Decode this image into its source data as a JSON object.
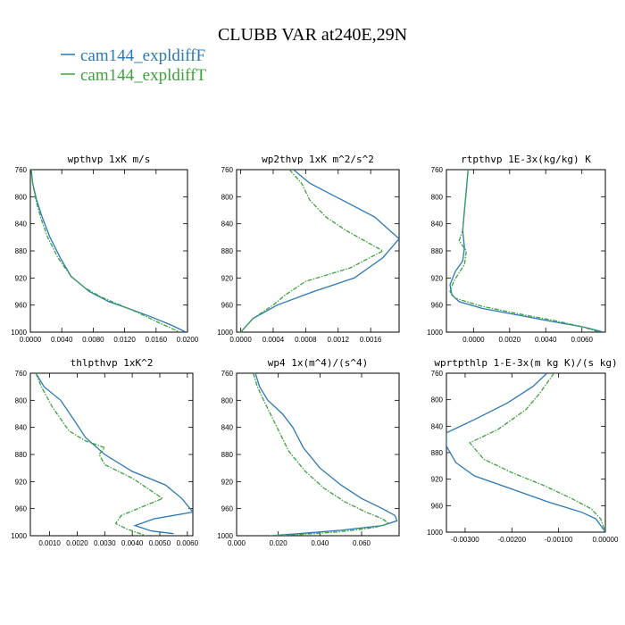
{
  "figure": {
    "title": "CLUBB VAR at240E,29N",
    "legend": [
      {
        "label": "cam144_expldiffF",
        "color": "#2a78b8",
        "dash": false
      },
      {
        "label": "cam144_expldiffT",
        "color": "#3aa33a",
        "dash": true
      }
    ]
  },
  "chart_data": [
    {
      "type": "line",
      "title": "wpthvp  1xK m/s",
      "xlim": [
        0,
        0.02
      ],
      "ylim": [
        760,
        1000
      ],
      "y_reversed": true,
      "xticks": [
        "0.0000",
        "0.0040",
        "0.0080",
        "0.0120",
        "0.0160",
        "0.0200"
      ],
      "xtick_values": [
        0,
        0.004,
        0.008,
        0.012,
        0.016,
        0.02
      ],
      "yticks": [
        760,
        800,
        840,
        880,
        920,
        960,
        1000
      ],
      "series": [
        {
          "name": "cam144_expldiffF",
          "x": [
            0.0001,
            0.0003,
            0.0008,
            0.0015,
            0.0025,
            0.0038,
            0.0052,
            0.0075,
            0.01,
            0.0125,
            0.0155,
            0.018,
            0.0198
          ],
          "y": [
            760,
            780,
            805,
            830,
            860,
            890,
            918,
            940,
            955,
            965,
            978,
            990,
            1000
          ]
        },
        {
          "name": "cam144_expldiffT",
          "x": [
            0.0001,
            0.0003,
            0.0007,
            0.0013,
            0.0022,
            0.0035,
            0.0052,
            0.007,
            0.009,
            0.011,
            0.0135,
            0.016,
            0.019
          ],
          "y": [
            760,
            780,
            805,
            830,
            860,
            890,
            918,
            935,
            948,
            958,
            970,
            984,
            1000
          ]
        }
      ]
    },
    {
      "type": "line",
      "title": "wp2thvp  1xK m^2/s^2",
      "xlim": [
        -5e-05,
        0.00195
      ],
      "ylim": [
        760,
        1000
      ],
      "y_reversed": true,
      "xticks": [
        "0.0000",
        "0.0004",
        "0.0008",
        "0.0012",
        "0.0016"
      ],
      "xtick_values": [
        0,
        0.0004,
        0.0008,
        0.0012,
        0.0016
      ],
      "yticks": [
        760,
        800,
        840,
        880,
        920,
        960,
        1000
      ],
      "series": [
        {
          "name": "cam144_expldiffF",
          "x": [
            0.00065,
            0.00085,
            0.00125,
            0.00165,
            0.00195,
            0.00175,
            0.0014,
            0.0009,
            0.00045,
            0.00015,
            0.0
          ],
          "y": [
            760,
            780,
            805,
            830,
            862,
            890,
            920,
            940,
            960,
            980,
            1000
          ]
        },
        {
          "name": "cam144_expldiffT",
          "x": [
            0.0006,
            0.00075,
            0.00085,
            0.00105,
            0.0013,
            0.00175,
            0.00135,
            0.0008,
            0.00055,
            0.0004,
            0.00015,
            0.0
          ],
          "y": [
            760,
            780,
            805,
            830,
            850,
            880,
            905,
            925,
            945,
            960,
            980,
            1000
          ]
        }
      ]
    },
    {
      "type": "line",
      "title": "rtpthvp  1E-3x(kg/kg) K",
      "xlim": [
        -0.0015,
        0.0073
      ],
      "ylim": [
        760,
        1000
      ],
      "y_reversed": true,
      "xticks": [
        "0.0000",
        "0.0020",
        "0.0040",
        "0.0060"
      ],
      "xtick_values": [
        0,
        0.002,
        0.004,
        0.006
      ],
      "yticks": [
        760,
        800,
        840,
        880,
        920,
        960,
        1000
      ],
      "series": [
        {
          "name": "cam144_expldiffF",
          "x": [
            -0.0003,
            -0.0004,
            -0.0005,
            -0.0006,
            -0.0005,
            -0.0006,
            -0.001,
            -0.0013,
            -0.0012,
            -0.0008,
            0.0005,
            0.0025,
            0.0045,
            0.0062,
            0.0072
          ],
          "y": [
            760,
            790,
            820,
            850,
            875,
            895,
            910,
            930,
            945,
            955,
            965,
            975,
            985,
            993,
            1000
          ]
        },
        {
          "name": "cam144_expldiffT",
          "x": [
            -0.0003,
            -0.0004,
            -0.0005,
            -0.0006,
            -0.0008,
            -0.0004,
            -0.0005,
            -0.0011,
            -0.0013,
            -0.001,
            0.0005,
            0.0025,
            0.0045,
            0.006,
            0.007
          ],
          "y": [
            760,
            790,
            820,
            850,
            865,
            880,
            900,
            925,
            940,
            950,
            962,
            973,
            983,
            992,
            1000
          ]
        }
      ]
    },
    {
      "type": "line",
      "title": "thlpthvp  1xK^2",
      "xlim": [
        0.0003,
        0.0062
      ],
      "ylim": [
        760,
        1000
      ],
      "y_reversed": true,
      "xticks": [
        "0.0010",
        "0.0020",
        "0.0030",
        "0.0040",
        "0.0050",
        "0.0060"
      ],
      "xtick_values": [
        0.001,
        0.002,
        0.003,
        0.004,
        0.005,
        0.006
      ],
      "yticks": [
        760,
        800,
        840,
        880,
        920,
        960,
        1000
      ],
      "series": [
        {
          "name": "cam144_expldiffF",
          "x": [
            0.0005,
            0.0008,
            0.0014,
            0.0019,
            0.0023,
            0.003,
            0.004,
            0.0052,
            0.0058,
            0.0062,
            0.0055,
            0.0048,
            0.0041,
            0.0047,
            0.0055
          ],
          "y": [
            760,
            780,
            800,
            830,
            855,
            880,
            905,
            925,
            945,
            965,
            970,
            975,
            985,
            993,
            997
          ]
        },
        {
          "name": "cam144_expldiffT",
          "x": [
            0.0005,
            0.0007,
            0.0011,
            0.0017,
            0.0023,
            0.003,
            0.0028,
            0.003,
            0.004,
            0.0051,
            0.0042,
            0.0036,
            0.0034,
            0.0038,
            0.0045
          ],
          "y": [
            760,
            780,
            810,
            845,
            860,
            870,
            880,
            895,
            915,
            945,
            960,
            970,
            982,
            990,
            1000
          ]
        }
      ]
    },
    {
      "type": "line",
      "title": "wp4  1x(m^4)/(s^4)",
      "xlim": [
        0,
        0.078
      ],
      "ylim": [
        760,
        1000
      ],
      "y_reversed": true,
      "xticks": [
        "0.000",
        "0.020",
        "0.040",
        "0.060"
      ],
      "xtick_values": [
        0,
        0.02,
        0.04,
        0.06
      ],
      "yticks": [
        760,
        800,
        840,
        880,
        920,
        960,
        1000
      ],
      "series": [
        {
          "name": "cam144_expldiffF",
          "x": [
            0.009,
            0.011,
            0.015,
            0.022,
            0.027,
            0.032,
            0.04,
            0.05,
            0.06,
            0.07,
            0.076,
            0.077,
            0.07,
            0.05,
            0.03,
            0.016
          ],
          "y": [
            760,
            780,
            800,
            820,
            840,
            870,
            900,
            925,
            945,
            960,
            970,
            978,
            985,
            992,
            997,
            1000
          ]
        },
        {
          "name": "cam144_expldiffT",
          "x": [
            0.008,
            0.01,
            0.013,
            0.017,
            0.021,
            0.025,
            0.033,
            0.042,
            0.052,
            0.062,
            0.07,
            0.073,
            0.066,
            0.05,
            0.032,
            0.017
          ],
          "y": [
            760,
            780,
            800,
            825,
            850,
            875,
            905,
            930,
            950,
            965,
            975,
            982,
            988,
            994,
            998,
            1000
          ]
        }
      ]
    },
    {
      "type": "line",
      "title": "wprtpthlp  1-E-3x(m kg K)/(s kg)",
      "xlim": [
        -0.0034,
        0.0
      ],
      "ylim": [
        760,
        1000
      ],
      "y_reversed": true,
      "xticks": [
        "-0.00300",
        "-0.00200",
        "-0.00100",
        "0.00000"
      ],
      "xtick_values": [
        -0.003,
        -0.002,
        -0.001,
        0
      ],
      "yticks": [
        760,
        800,
        840,
        880,
        920,
        960,
        1000
      ],
      "series": [
        {
          "name": "cam144_expldiffF",
          "x": [
            -0.00125,
            -0.00155,
            -0.0021,
            -0.0028,
            -0.0034,
            -0.0034,
            -0.0032,
            -0.0028,
            -0.002,
            -0.0012,
            -0.0005,
            -0.0002,
            -0.0001,
            0.0
          ],
          "y": [
            760,
            780,
            805,
            830,
            850,
            870,
            895,
            915,
            935,
            955,
            970,
            980,
            990,
            1000
          ]
        },
        {
          "name": "cam144_expldiffT",
          "x": [
            -0.0011,
            -0.0014,
            -0.0017,
            -0.0023,
            -0.0029,
            -0.0026,
            -0.002,
            -0.0013,
            -0.0007,
            -0.0003,
            -0.0001,
            0.0
          ],
          "y": [
            760,
            790,
            815,
            845,
            865,
            890,
            910,
            930,
            950,
            965,
            980,
            1000
          ]
        }
      ]
    }
  ]
}
